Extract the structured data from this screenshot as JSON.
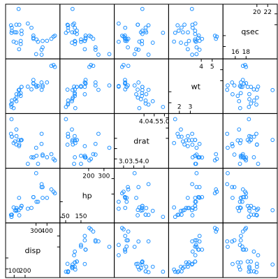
{
  "chart_data": {
    "type": "scatter",
    "title": "",
    "variables": [
      {
        "name": "qsec",
        "range": [
          14.5,
          23
        ],
        "ticks_low": [
          "16",
          "18"
        ],
        "ticks_low_values": [
          16,
          18
        ],
        "ticks_high": [
          "20",
          "22"
        ],
        "ticks_high_values": [
          20,
          22
        ],
        "values": [
          16.46,
          17.02,
          18.61,
          19.44,
          17.02,
          20.22,
          15.84,
          20.0,
          22.9,
          18.3,
          18.9,
          17.4,
          17.6,
          18.0,
          17.98,
          17.82,
          17.42,
          19.47,
          18.52,
          19.9,
          20.01,
          16.87,
          17.3,
          15.41,
          17.05,
          18.9,
          16.7,
          16.9,
          14.5,
          15.5,
          14.6,
          18.6
        ]
      },
      {
        "name": "wt",
        "range": [
          1.4,
          5.6
        ],
        "ticks_low": [
          "2",
          "3"
        ],
        "ticks_low_values": [
          2,
          3
        ],
        "ticks_high": [
          "4",
          "5"
        ],
        "ticks_high_values": [
          4,
          5
        ],
        "values": [
          2.62,
          2.875,
          2.32,
          3.215,
          3.44,
          3.46,
          3.57,
          3.19,
          3.15,
          3.44,
          3.44,
          4.07,
          3.73,
          3.78,
          5.25,
          5.424,
          5.345,
          2.2,
          1.615,
          1.835,
          2.465,
          3.52,
          3.435,
          3.84,
          3.845,
          1.935,
          2.14,
          1.513,
          3.17,
          2.77,
          3.57,
          2.78
        ]
      },
      {
        "name": "drat",
        "range": [
          2.75,
          5.0
        ],
        "ticks_low": [
          "3.0",
          "3.5",
          "4.0"
        ],
        "ticks_low_values": [
          3.0,
          3.5,
          4.0
        ],
        "ticks_high": [
          "4.0",
          "4.5",
          "5.0"
        ],
        "ticks_high_values": [
          4.0,
          4.5,
          5.0
        ],
        "values": [
          3.9,
          3.9,
          3.85,
          3.08,
          3.15,
          2.76,
          3.21,
          3.69,
          3.92,
          3.92,
          3.92,
          3.07,
          3.07,
          3.07,
          2.93,
          3.0,
          3.23,
          4.08,
          4.93,
          4.22,
          3.7,
          2.76,
          3.15,
          3.73,
          3.08,
          4.08,
          4.43,
          3.77,
          4.22,
          3.62,
          3.54,
          4.11
        ]
      },
      {
        "name": "hp",
        "range": [
          40,
          340
        ],
        "ticks_low": [
          "50",
          "150"
        ],
        "ticks_low_values": [
          50,
          150
        ],
        "ticks_high": [
          "200",
          "300"
        ],
        "ticks_high_values": [
          200,
          300
        ],
        "values": [
          110,
          110,
          93,
          110,
          175,
          105,
          245,
          62,
          95,
          123,
          123,
          180,
          180,
          180,
          205,
          215,
          230,
          66,
          52,
          65,
          97,
          150,
          150,
          245,
          175,
          66,
          91,
          113,
          264,
          175,
          335,
          109
        ]
      },
      {
        "name": "disp",
        "range": [
          60,
          480
        ],
        "ticks_low": [
          "100",
          "200"
        ],
        "ticks_low_values": [
          100,
          200
        ],
        "ticks_high": [
          "300",
          "400"
        ],
        "ticks_high_values": [
          300,
          400
        ],
        "values": [
          160,
          160,
          108,
          258,
          360,
          225,
          360,
          146.7,
          140.8,
          167.6,
          167.6,
          275.8,
          275.8,
          275.8,
          472,
          460,
          440,
          78.7,
          75.7,
          71.1,
          120.1,
          318,
          304,
          350,
          400,
          79,
          120.3,
          95.1,
          351,
          145,
          301,
          121
        ]
      }
    ],
    "point_color": "#1e90ff",
    "grid": false,
    "legend": "none"
  }
}
